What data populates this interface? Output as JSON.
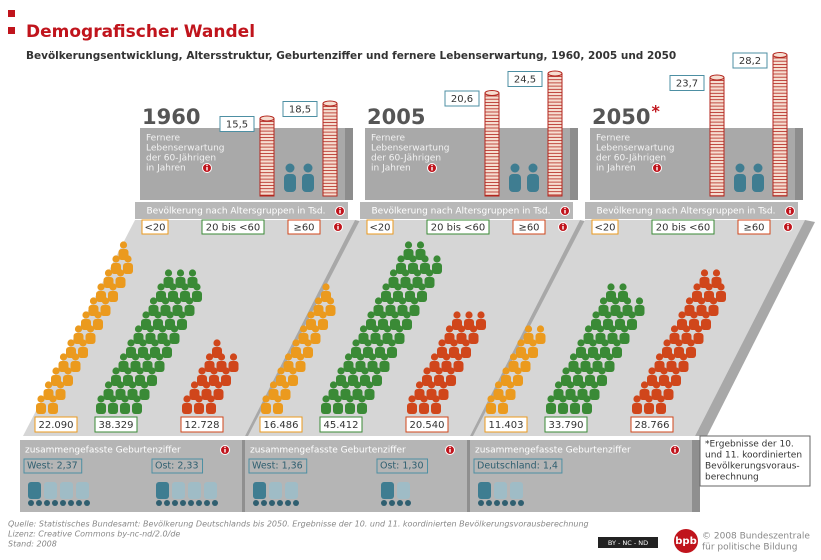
{
  "header": {
    "title": "Demografischer Wandel",
    "subtitle": "Bevölkerungsentwicklung, Altersstruktur, Geburtenziffer und fernere Lebenserwartung, 1960, 2005 und 2050"
  },
  "labels": {
    "life_expectancy": [
      "Fernere",
      "Lebenserwartung",
      "der 60-Jährigen",
      "in Jahren"
    ],
    "population": "Bevölkerung nach Altersgruppen in Tsd.",
    "groups": [
      "<20",
      "20 bis <60",
      "≥60"
    ],
    "fertility": "zusammengefasste Geburtenziffer"
  },
  "panels": [
    {
      "year": "1960",
      "life_expectancy": [
        {
          "value": 15.5,
          "label": "15,5"
        },
        {
          "value": 18.5,
          "label": "18,5"
        }
      ],
      "population": [
        {
          "value": 22090,
          "label": "22.090"
        },
        {
          "value": 38329,
          "label": "38.329"
        },
        {
          "value": 12728,
          "label": "12.728"
        }
      ],
      "fertility": [
        {
          "region": "West:",
          "value": {
            "value": 2.37,
            "label": "2,37"
          }
        },
        {
          "region": "Ost:",
          "value": {
            "value": 2.33,
            "label": "2,33"
          }
        }
      ]
    },
    {
      "year": "2005",
      "life_expectancy": [
        {
          "value": 20.6,
          "label": "20,6"
        },
        {
          "value": 24.5,
          "label": "24,5"
        }
      ],
      "population": [
        {
          "value": 16486,
          "label": "16.486"
        },
        {
          "value": 45412,
          "label": "45.412"
        },
        {
          "value": 20540,
          "label": "20.540"
        }
      ],
      "fertility": [
        {
          "region": "West:",
          "value": {
            "value": 1.36,
            "label": "1,36"
          }
        },
        {
          "region": "Ost:",
          "value": {
            "value": 1.3,
            "label": "1,30"
          }
        }
      ]
    },
    {
      "year": "2050",
      "marker": "*",
      "life_expectancy": [
        {
          "value": 23.7,
          "label": "23,7"
        },
        {
          "value": 28.2,
          "label": "28,2"
        }
      ],
      "population": [
        {
          "value": 11403,
          "label": "11.403"
        },
        {
          "value": 33790,
          "label": "33.790"
        },
        {
          "value": 28766,
          "label": "28.766"
        }
      ],
      "fertility": [
        {
          "region": "Deutschland:",
          "value": {
            "value": 1.4,
            "label": "1,4"
          }
        }
      ]
    }
  ],
  "footnote": [
    "*Ergebnisse der 10.",
    "und 11. koordinierten",
    "Bevölkerungsvoraus-",
    "berechnung"
  ],
  "source": [
    "Quelle: Statistisches Bundesamt: Bevölkerung Deutschlands bis 2050. Ergebnisse der 10. und 11. koordinierten Bevölkerungsvorausberechnung",
    "Lizenz: Creative Commons by-nc-nd/2.0/de",
    "Stand: 2008"
  ],
  "license_badge": "BY - NC - ND",
  "logo": {
    "mark": "bpb",
    "text": [
      "© 2008 Bundeszentrale",
      "für politische Bildung"
    ]
  }
}
